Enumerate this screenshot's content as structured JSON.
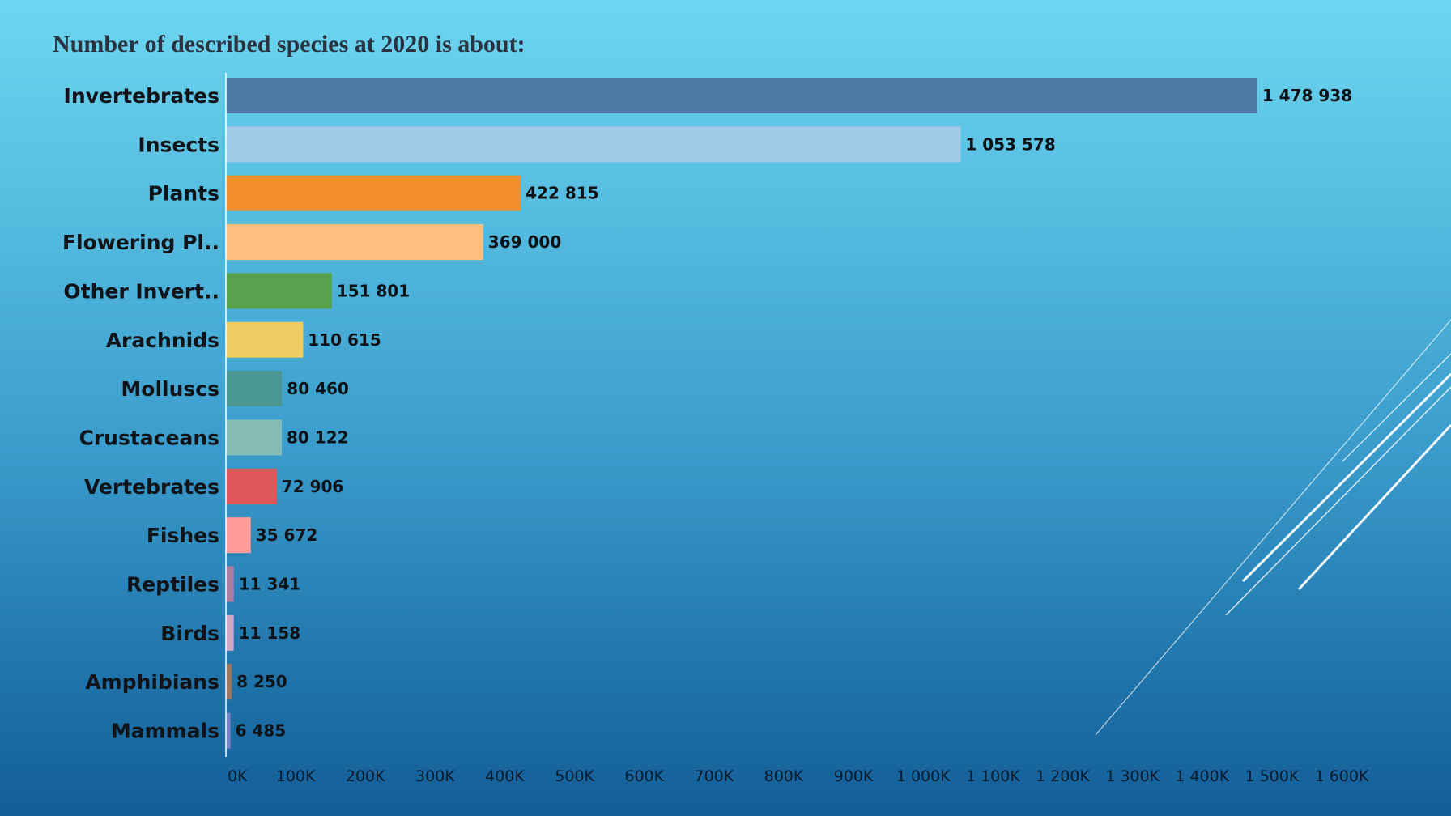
{
  "slide": {
    "title": "Number of described species at 2020 is about:"
  },
  "chart_data": {
    "type": "bar",
    "orientation": "horizontal",
    "title": "Number of described species at 2020 is about:",
    "xlabel": "",
    "ylabel": "",
    "xlim": [
      0,
      1600000
    ],
    "grid": false,
    "legend": "none",
    "categories": [
      "Invertebrates",
      "Insects",
      "Plants",
      "Flowering Pl..",
      "Other Invert..",
      "Arachnids",
      "Molluscs",
      "Crustaceans",
      "Vertebrates",
      "Fishes",
      "Reptiles",
      "Birds",
      "Amphibians",
      "Mammals"
    ],
    "values": [
      1478938,
      1053578,
      422815,
      369000,
      151801,
      110615,
      80460,
      80122,
      72906,
      35672,
      11341,
      11158,
      8250,
      6485
    ],
    "value_labels": [
      "1 478 938",
      "1 053 578",
      "422 815",
      "369 000",
      "151 801",
      "110 615",
      "80 460",
      "80 122",
      "72 906",
      "35 672",
      "11 341",
      "11 158",
      "8 250",
      "6 485"
    ],
    "colors": [
      "#4e79a7",
      "#a0cbe8",
      "#f28e2b",
      "#ffbe7d",
      "#59a14f",
      "#f1ce63",
      "#499894",
      "#86bcb6",
      "#e15759",
      "#ff9d9a",
      "#b07aa1",
      "#d4a6c8",
      "#9d7660",
      "#7b7fc4"
    ],
    "xticks": [
      "0K",
      "100K",
      "200K",
      "300K",
      "400K",
      "500K",
      "600K",
      "700K",
      "800K",
      "900K",
      "1 000K",
      "1 100K",
      "1 200K",
      "1 300K",
      "1 400K",
      "1 500K",
      "1 600K"
    ],
    "xtick_values": [
      0,
      100000,
      200000,
      300000,
      400000,
      500000,
      600000,
      700000,
      800000,
      900000,
      1000000,
      1100000,
      1200000,
      1300000,
      1400000,
      1500000,
      1600000
    ]
  }
}
